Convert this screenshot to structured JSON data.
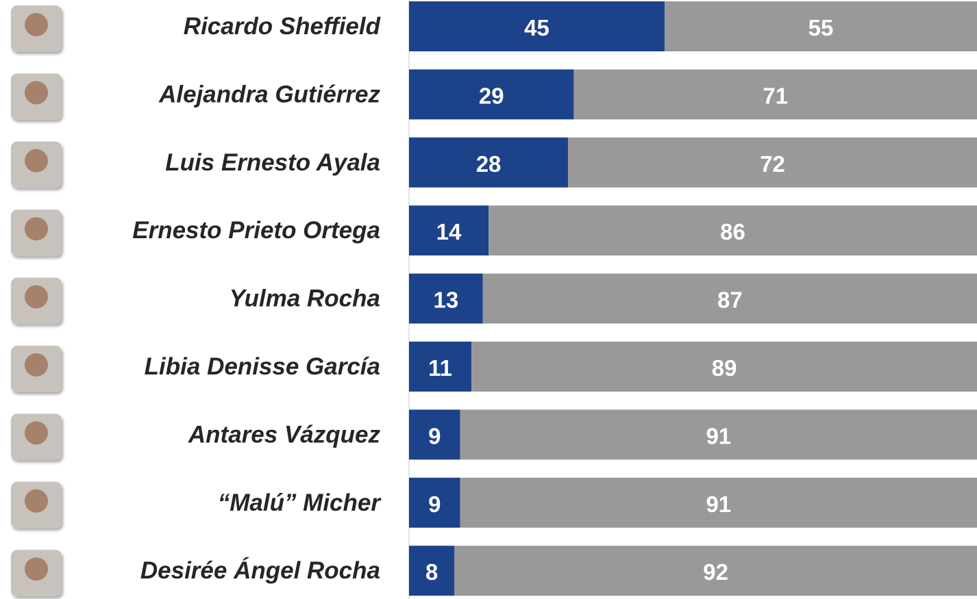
{
  "chart_data": {
    "type": "stacked-bar-horizontal",
    "categories": [
      "Ricardo Sheffield",
      "Alejandra Gutiérrez",
      "Luis Ernesto Ayala",
      "Ernesto Prieto Ortega",
      "Yulma Rocha",
      "Libia Denisse García",
      "Antares Vázquez",
      "“Malú” Micher",
      "Desirée Ángel Rocha"
    ],
    "series": [
      {
        "color": "#1c428a",
        "values": [
          45,
          29,
          28,
          14,
          13,
          11,
          9,
          9,
          8
        ]
      },
      {
        "color": "#999999",
        "values": [
          55,
          71,
          72,
          86,
          87,
          89,
          91,
          91,
          92
        ]
      }
    ],
    "xlim": [
      0,
      100
    ]
  }
}
